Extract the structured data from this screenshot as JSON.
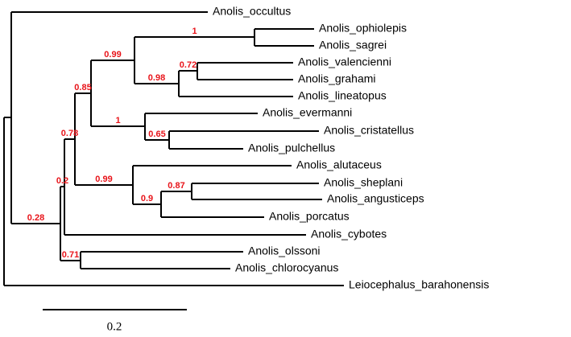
{
  "taxa": [
    "Anolis_occultus",
    "Anolis_ophiolepis",
    "Anolis_sagrei",
    "Anolis_valencienni",
    "Anolis_grahami",
    "Anolis_lineatopus",
    "Anolis_evermanni",
    "Anolis_cristatellus",
    "Anolis_pulchellus",
    "Anolis_alutaceus",
    "Anolis_sheplani",
    "Anolis_angusticeps",
    "Anolis_porcatus",
    "Anolis_cybotes",
    "Anolis_olssoni",
    "Anolis_chlorocyanus",
    "Leiocephalus_barahonensis"
  ],
  "support": [
    "1",
    "0.99",
    "0.72",
    "0.98",
    "0.85",
    "1",
    "0.65",
    "0.78",
    "0.99",
    "0.2",
    "0.87",
    "0.9",
    "0.28",
    "0.71"
  ],
  "scale_bar": {
    "label": "0.2"
  }
}
